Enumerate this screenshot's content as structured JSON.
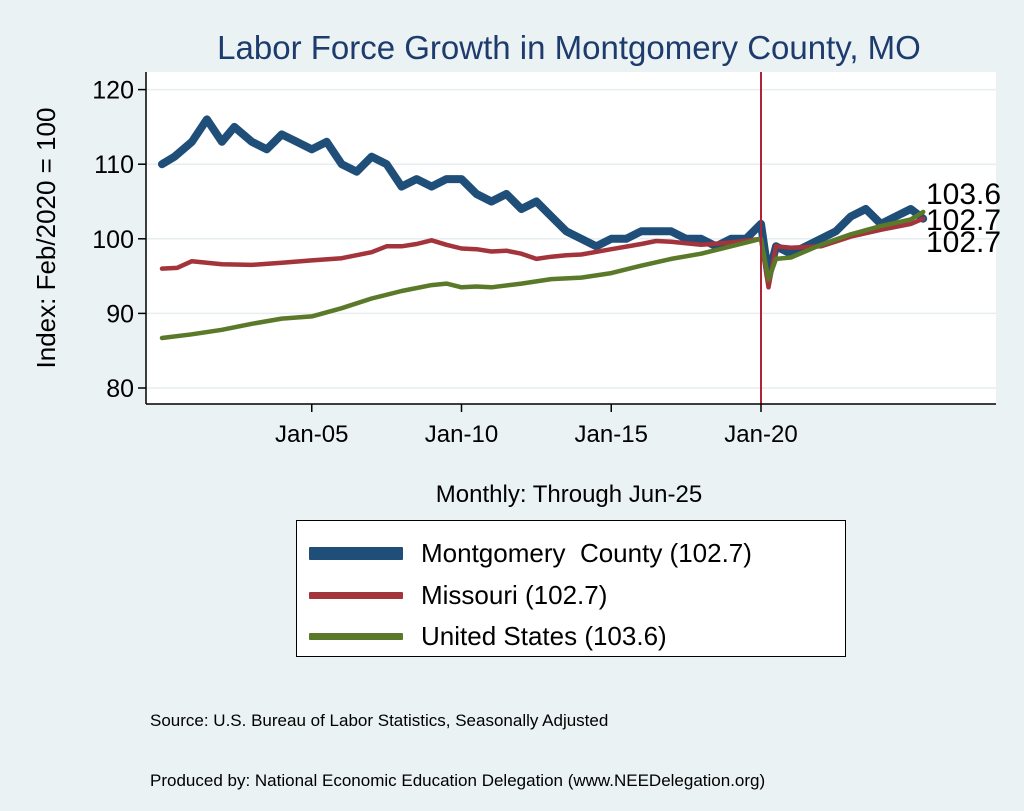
{
  "chart_data": {
    "type": "line",
    "title": "Labor Force Growth in Montgomery  County, MO",
    "xlabel": "Monthly: Through Jun-25",
    "ylabel": "Index: Feb/2020 = 100",
    "x_start": "Jan-00",
    "x_end": "Jun-25",
    "x_ticks": [
      "Jan-05",
      "Jan-10",
      "Jan-15",
      "Jan-20"
    ],
    "ylim": [
      78,
      122
    ],
    "y_ticks": [
      80,
      90,
      100,
      110,
      120
    ],
    "vertical_marker": "Jan-20",
    "grid": true,
    "series": [
      {
        "name": "Montgomery  County (102.7)",
        "color": "#1f4e79",
        "end_label": "102.7",
        "points": [
          [
            "Jan-00",
            110
          ],
          [
            "Jun-00",
            111
          ],
          [
            "Jan-01",
            113
          ],
          [
            "Jul-01",
            116
          ],
          [
            "Jan-02",
            113
          ],
          [
            "Jun-02",
            115
          ],
          [
            "Jan-03",
            113
          ],
          [
            "Jul-03",
            112
          ],
          [
            "Jan-04",
            114
          ],
          [
            "Jul-04",
            113
          ],
          [
            "Jan-05",
            112
          ],
          [
            "Jul-05",
            113
          ],
          [
            "Jan-06",
            110
          ],
          [
            "Jul-06",
            109
          ],
          [
            "Jan-07",
            111
          ],
          [
            "Jul-07",
            110
          ],
          [
            "Jan-08",
            107
          ],
          [
            "Jul-08",
            108
          ],
          [
            "Jan-09",
            107
          ],
          [
            "Jul-09",
            108
          ],
          [
            "Jan-10",
            108
          ],
          [
            "Jul-10",
            106
          ],
          [
            "Jan-11",
            105
          ],
          [
            "Jul-11",
            106
          ],
          [
            "Jan-12",
            104
          ],
          [
            "Jul-12",
            105
          ],
          [
            "Jan-13",
            103
          ],
          [
            "Jul-13",
            101
          ],
          [
            "Jan-14",
            100
          ],
          [
            "Jul-14",
            99
          ],
          [
            "Jan-15",
            100
          ],
          [
            "Jul-15",
            100
          ],
          [
            "Jan-16",
            101
          ],
          [
            "Jul-16",
            101
          ],
          [
            "Jan-17",
            101
          ],
          [
            "Jul-17",
            100
          ],
          [
            "Jan-18",
            100
          ],
          [
            "Jul-18",
            99
          ],
          [
            "Jan-19",
            100
          ],
          [
            "Jul-19",
            100
          ],
          [
            "Jan-20",
            102
          ],
          [
            "Apr-20",
            95
          ],
          [
            "Jul-20",
            99
          ],
          [
            "Jan-21",
            98
          ],
          [
            "Jul-21",
            99
          ],
          [
            "Jan-22",
            100
          ],
          [
            "Jul-22",
            101
          ],
          [
            "Jan-23",
            103
          ],
          [
            "Jul-23",
            104
          ],
          [
            "Jan-24",
            102
          ],
          [
            "Jul-24",
            103
          ],
          [
            "Jan-25",
            104
          ],
          [
            "Jun-25",
            102.7
          ]
        ]
      },
      {
        "name": "Missouri (102.7)",
        "color": "#a3343b",
        "end_label": "102.7",
        "points": [
          [
            "Jan-00",
            96
          ],
          [
            "Jul-00",
            96.1
          ],
          [
            "Jan-01",
            97
          ],
          [
            "Jul-01",
            96.8
          ],
          [
            "Jan-02",
            96.6
          ],
          [
            "Jan-03",
            96.5
          ],
          [
            "Jan-04",
            96.8
          ],
          [
            "Jan-05",
            97.1
          ],
          [
            "Jan-06",
            97.4
          ],
          [
            "Jan-07",
            98.2
          ],
          [
            "Jul-07",
            99
          ],
          [
            "Jan-08",
            99
          ],
          [
            "Jul-08",
            99.3
          ],
          [
            "Jan-09",
            99.8
          ],
          [
            "Jul-09",
            99.2
          ],
          [
            "Jan-10",
            98.7
          ],
          [
            "Jul-10",
            98.6
          ],
          [
            "Jan-11",
            98.3
          ],
          [
            "Jul-11",
            98.4
          ],
          [
            "Jan-12",
            98
          ],
          [
            "Jul-12",
            97.3
          ],
          [
            "Jan-13",
            97.6
          ],
          [
            "Jul-13",
            97.8
          ],
          [
            "Jan-14",
            97.9
          ],
          [
            "Jan-15",
            98.6
          ],
          [
            "Jan-16",
            99.3
          ],
          [
            "Jul-16",
            99.7
          ],
          [
            "Jan-17",
            99.6
          ],
          [
            "Jan-18",
            99.2
          ],
          [
            "Jan-19",
            99.5
          ],
          [
            "Jan-20",
            100
          ],
          [
            "Apr-20",
            93.5
          ],
          [
            "Jul-20",
            99
          ],
          [
            "Jan-21",
            98.8
          ],
          [
            "Jan-22",
            99
          ],
          [
            "Jan-23",
            100.3
          ],
          [
            "Jan-24",
            101.2
          ],
          [
            "Jan-25",
            102
          ],
          [
            "Jun-25",
            102.7
          ]
        ]
      },
      {
        "name": "United States (103.6)",
        "color": "#5a7a2a",
        "end_label": "103.6",
        "points": [
          [
            "Jan-00",
            86.7
          ],
          [
            "Jan-01",
            87.2
          ],
          [
            "Jan-02",
            87.8
          ],
          [
            "Jan-03",
            88.6
          ],
          [
            "Jan-04",
            89.3
          ],
          [
            "Jan-05",
            89.6
          ],
          [
            "Jan-06",
            90.7
          ],
          [
            "Jan-07",
            92
          ],
          [
            "Jan-08",
            93
          ],
          [
            "Jan-09",
            93.8
          ],
          [
            "Jul-09",
            94
          ],
          [
            "Jan-10",
            93.5
          ],
          [
            "Jul-10",
            93.6
          ],
          [
            "Jan-11",
            93.5
          ],
          [
            "Jan-12",
            94
          ],
          [
            "Jan-13",
            94.6
          ],
          [
            "Jan-14",
            94.8
          ],
          [
            "Jan-15",
            95.4
          ],
          [
            "Jan-16",
            96.4
          ],
          [
            "Jan-17",
            97.3
          ],
          [
            "Jan-18",
            98
          ],
          [
            "Jan-19",
            99
          ],
          [
            "Jan-20",
            100
          ],
          [
            "Apr-20",
            94.5
          ],
          [
            "Jul-20",
            97.3
          ],
          [
            "Jan-21",
            97.5
          ],
          [
            "Jan-22",
            99.2
          ],
          [
            "Jan-23",
            100.6
          ],
          [
            "Jan-24",
            101.7
          ],
          [
            "Jan-25",
            102.6
          ],
          [
            "Jun-25",
            103.6
          ]
        ]
      }
    ]
  },
  "legend": {
    "items": [
      {
        "label": "Montgomery  County (102.7)",
        "color": "#1f4e79"
      },
      {
        "label": "Missouri (102.7)",
        "color": "#a3343b"
      },
      {
        "label": "United States (103.6)",
        "color": "#5a7a2a"
      }
    ]
  },
  "footer": {
    "source_line": "Source: U.S. Bureau of Labor Statistics, Seasonally Adjusted",
    "produced_line": "Produced by: National Economic Education Delegation (www.NEEDelegation.org)"
  }
}
